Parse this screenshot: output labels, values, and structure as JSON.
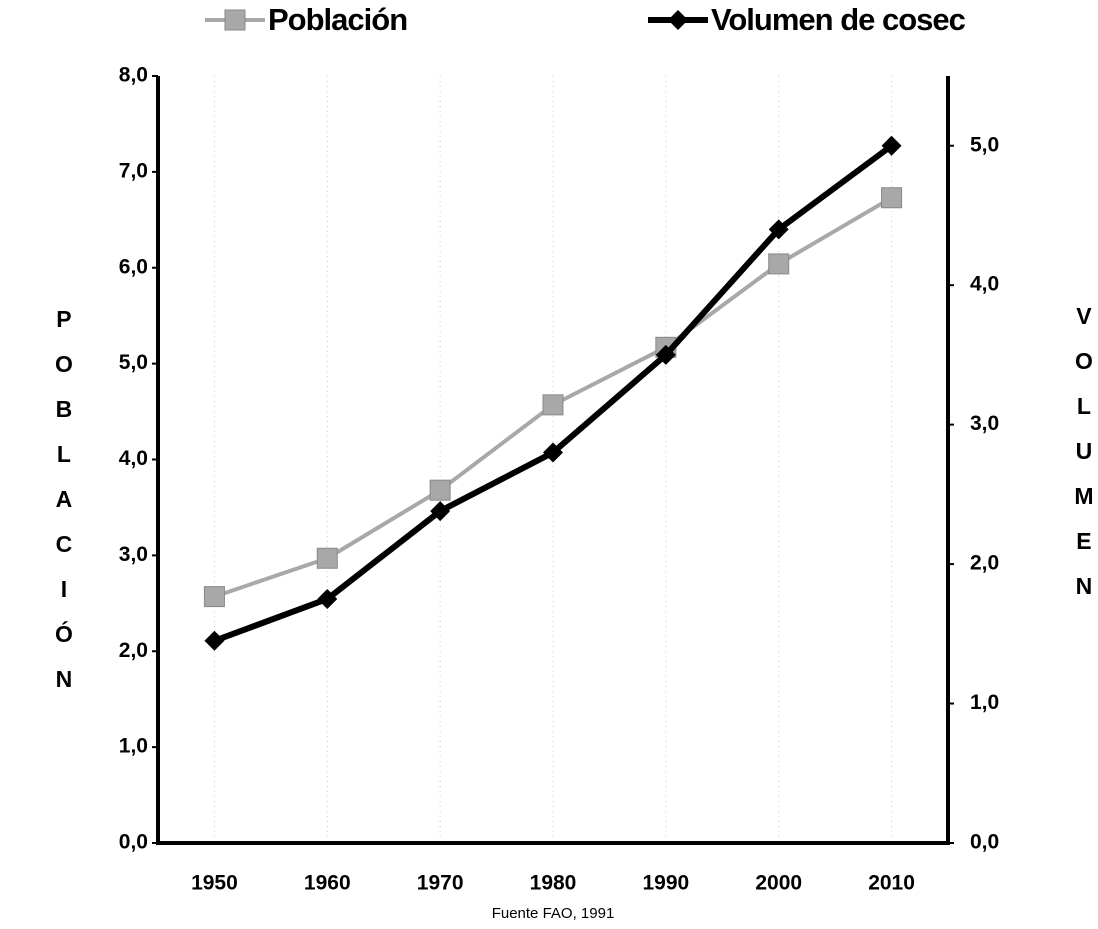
{
  "chart_data": {
    "type": "line",
    "categories": [
      "1950",
      "1960",
      "1970",
      "1980",
      "1990",
      "2000",
      "2010"
    ],
    "series": [
      {
        "name": "Población",
        "color": "#a8a8a8",
        "marker": "square",
        "values": [
          2.57,
          2.97,
          3.68,
          4.57,
          5.17,
          6.04,
          6.73
        ]
      },
      {
        "name": "Volumen de cosec",
        "color": "#000000",
        "marker": "diamond",
        "axis": "y2",
        "values": [
          1.45,
          1.75,
          2.38,
          2.8,
          3.5,
          4.4,
          5.0
        ]
      }
    ],
    "ylabel": "POBLACIÓN",
    "y2label": "VOLUMEN",
    "source": "Fuente FAO, 1991",
    "ylim": [
      0,
      8
    ],
    "yticks": [
      {
        "value": 0,
        "label": "0,0"
      },
      {
        "value": 1,
        "label": "1,0"
      },
      {
        "value": 2,
        "label": "2,0"
      },
      {
        "value": 3,
        "label": "3,0"
      },
      {
        "value": 4,
        "label": "4,0"
      },
      {
        "value": 5,
        "label": "5,0"
      },
      {
        "value": 6,
        "label": "6,0"
      },
      {
        "value": 7,
        "label": "7,0"
      },
      {
        "value": 8,
        "label": "8,0"
      }
    ],
    "y2lim": [
      0,
      5.5
    ],
    "y2ticks": [
      {
        "value": 0,
        "label": "0,0"
      },
      {
        "value": 1,
        "label": "1,0"
      },
      {
        "value": 2,
        "label": "2,0"
      },
      {
        "value": 3,
        "label": "3,0"
      },
      {
        "value": 4,
        "label": "4,0"
      },
      {
        "value": 5,
        "label": "5,0"
      }
    ],
    "xgrid": true
  }
}
